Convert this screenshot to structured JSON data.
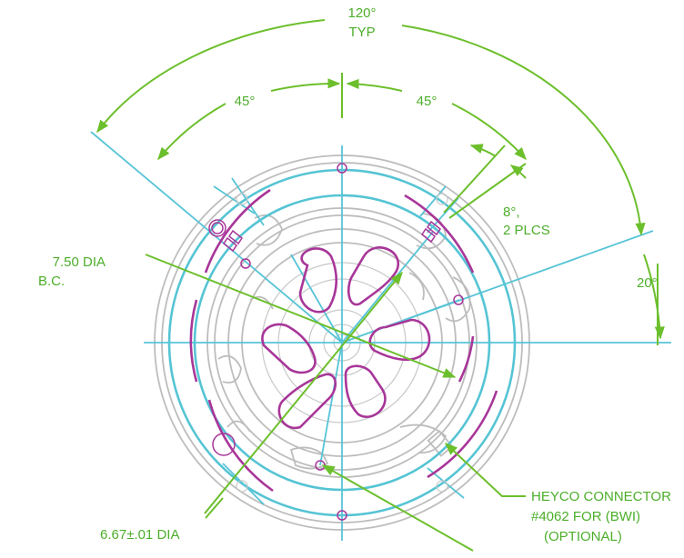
{
  "labels": {
    "typ_angle": "120°",
    "typ_word": "TYP",
    "left_45": "45°",
    "right_45": "45°",
    "eight_deg": "8°,",
    "two_plcs": "2 PLCS",
    "twenty_deg": "20°",
    "bc_dia": "7.50 DIA",
    "bc_word": "B.C.",
    "pilot_dia": "6.67±.01 DIA",
    "heyco_line1": "HEYCO CONNECTOR",
    "heyco_line2": "#4062 FOR (BWI)",
    "heyco_line3": "(OPTIONAL)"
  },
  "colors": {
    "dimension": "#6cbf2c",
    "text": "#4cae2a",
    "centerline": "#57c4d6",
    "bolt_circle": "#55c4d4",
    "slots": "#a83699",
    "outline": "#bdbdbd"
  }
}
